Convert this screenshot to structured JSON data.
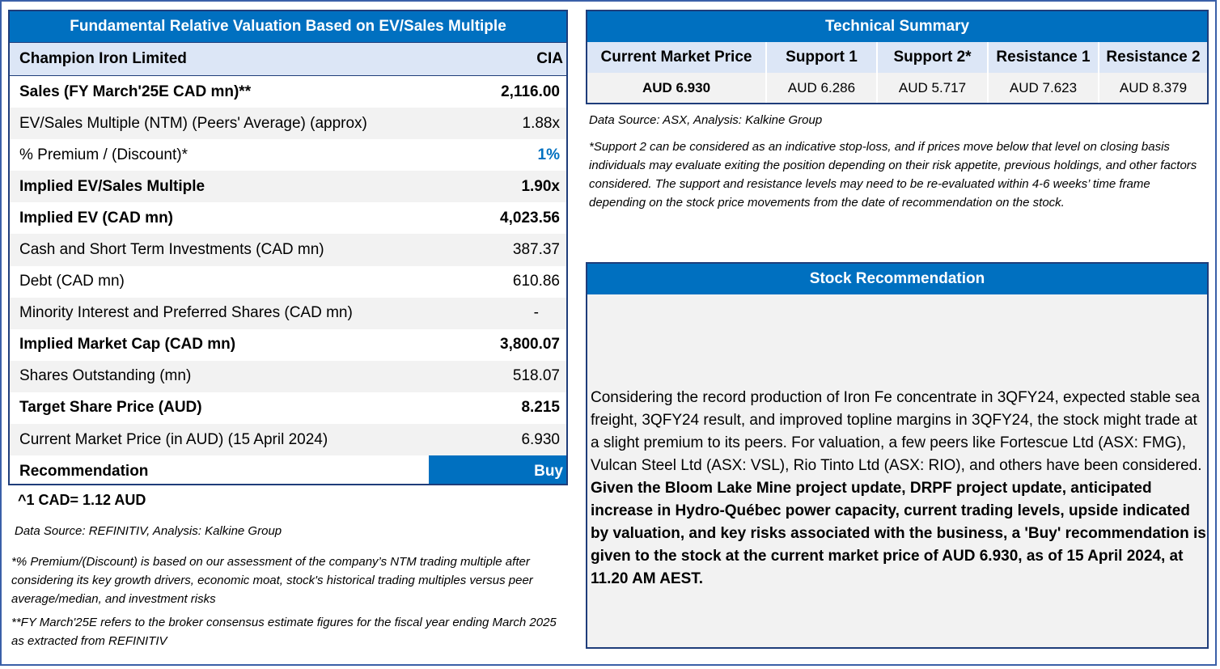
{
  "valuation": {
    "title": "Fundamental Relative Valuation Based on EV/Sales Multiple",
    "company": "Champion Iron Limited",
    "ticker": "CIA",
    "rows": [
      {
        "label": "Sales (FY March'25E CAD mn)**",
        "value": "2,116.00"
      },
      {
        "label": "EV/Sales Multiple (NTM)  (Peers' Average) (approx)",
        "value": "1.88x"
      },
      {
        "label": "% Premium / (Discount)*",
        "value": "1%"
      },
      {
        "label": "Implied EV/Sales Multiple",
        "value": "1.90x"
      },
      {
        "label": "Implied EV (CAD mn)",
        "value": "4,023.56"
      },
      {
        "label": "Cash and Short Term Investments (CAD mn)",
        "value": "387.37"
      },
      {
        "label": "Debt (CAD mn)",
        "value": "610.86"
      },
      {
        "label": "Minority Interest and Preferred Shares (CAD mn)",
        "value": "-"
      },
      {
        "label": "Implied Market Cap (CAD mn)",
        "value": "3,800.07"
      },
      {
        "label": "Shares Outstanding (mn)",
        "value": "518.07"
      },
      {
        "label": "Target Share Price (AUD)",
        "value": "8.215"
      },
      {
        "label": "Current Market Price (in AUD) (15 April 2024)",
        "value": "6.930"
      }
    ],
    "recommendation_label": "Recommendation",
    "recommendation_value": "Buy",
    "fx_note": "^1 CAD= 1.12 AUD",
    "source": "Data Source: REFINITIV, Analysis: Kalkine Group",
    "footnote_premium": "*% Premium/(Discount) is based on our assessment of the company’s NTM trading multiple after considering its key growth drivers, economic moat, stock's historical trading multiples versus peer average/median, and investment risks",
    "footnote_fy": "**FY March'25E refers to the broker consensus estimate figures for the fiscal year ending March 2025  as extracted from REFINITIV"
  },
  "technical": {
    "title": "Technical Summary",
    "headers": [
      "Current Market Price",
      "Support 1",
      "Support 2*",
      "Resistance 1",
      "Resistance 2"
    ],
    "values": [
      "AUD 6.930",
      "AUD 6.286",
      "AUD 5.717",
      "AUD 7.623",
      "AUD 8.379"
    ],
    "source": "Data Source: ASX, Analysis: Kalkine Group",
    "note": "*Support 2 can be considered as an indicative stop-loss, and if prices move below that level on closing basis individuals may evaluate exiting the position depending on their risk appetite, previous holdings, and other factors considered. The support and resistance levels may need to be re-evaluated within 4-6 weeks’ time frame depending on the stock price movements from the date of recommendation on the stock."
  },
  "stock_recommendation": {
    "title": "Stock Recommendation",
    "text_regular": "Considering the record production of Iron Fe concentrate in 3QFY24, expected stable sea freight, 3QFY24 result, and improved topline margins in 3QFY24, the stock might trade at a slight premium to its peers. For valuation, a few peers like Fortescue Ltd (ASX: FMG), Vulcan Steel Ltd (ASX: VSL), Rio Tinto Ltd (ASX: RIO), and others have been considered. ",
    "text_bold": "Given the Bloom Lake Mine project update, DRPF project update, anticipated increase in Hydro-Québec power capacity, current trading levels, upside indicated by valuation, and key risks associated with the business, a 'Buy' recommendation is given to the stock at the current market price of AUD 6.930, as of 15 April 2024, at 11.20 AM AEST."
  },
  "colors": {
    "header_blue": "#0070c0",
    "border_navy": "#1f3d7a",
    "light_blue": "#dce6f6",
    "alt_gray": "#f2f2f2"
  }
}
